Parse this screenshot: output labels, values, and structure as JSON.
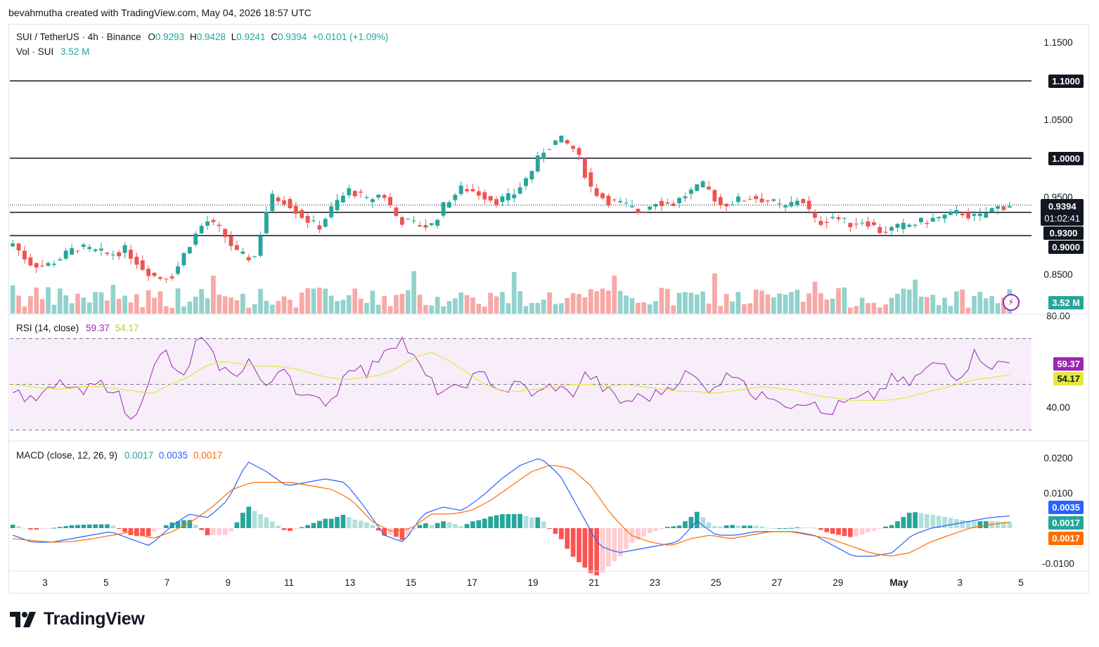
{
  "attribution": "bevahmutha created with TradingView.com, May 04, 2026 18:57 UTC",
  "brand": "TradingView",
  "header": {
    "symbol": "SUI / TetherUS · 4h · Binance",
    "o_label": "O",
    "o": "0.9293",
    "h_label": "H",
    "h": "0.9428",
    "l_label": "L",
    "l": "0.9241",
    "c_label": "C",
    "c": "0.9394",
    "change": "+0.0101 (+1.09%)",
    "vol_label": "Vol · SUI",
    "vol": "3.52 M"
  },
  "rsi_legend": {
    "label": "RSI (14, close)",
    "v1": "59.37",
    "v2": "54.17"
  },
  "macd_legend": {
    "label": "MACD (close, 12, 26, 9)",
    "v1": "0.0017",
    "v2": "0.0035",
    "v3": "0.0017"
  },
  "price_labels": {
    "current": "0.9394",
    "countdown": "01:02:41",
    "l1100": "1.1000",
    "l1000": "1.0000",
    "l9300": "0.9300",
    "l9000": "0.9000",
    "vol": "3.52 M",
    "rsi1": "59.37",
    "rsi2": "54.17",
    "macd1": "0.0035",
    "macd2": "0.0017",
    "macd3": "0.0017"
  },
  "colors": {
    "up": "#26a69a",
    "down": "#ef5350",
    "rsi": "#9c27b0",
    "rsi_ma": "#e4e83c",
    "macd": "#2962ff",
    "signal": "#ff6d00",
    "text": "#131722"
  },
  "chart_data": {
    "type": "candlestick",
    "symbol": "SUI / TetherUS",
    "timeframe": "4h",
    "price_axis_ticks": [
      "1.1500",
      "1.0500",
      "0.9500",
      "0.8500"
    ],
    "horizontal_lines": [
      1.1,
      1.0,
      0.93,
      0.9
    ],
    "x_ticks": [
      "3",
      "5",
      "7",
      "9",
      "11",
      "13",
      "15",
      "17",
      "19",
      "21",
      "23",
      "25",
      "27",
      "29",
      "May",
      "3",
      "5"
    ],
    "price_anchors": [
      0.89,
      0.865,
      0.86,
      0.872,
      0.885,
      0.88,
      0.875,
      0.882,
      0.86,
      0.845,
      0.85,
      0.89,
      0.92,
      0.905,
      0.875,
      0.87,
      0.95,
      0.945,
      0.925,
      0.91,
      0.94,
      0.96,
      0.945,
      0.955,
      0.92,
      0.915,
      0.912,
      0.945,
      0.962,
      0.955,
      0.945,
      0.95,
      0.975,
      1.01,
      1.025,
      1.01,
      0.96,
      0.945,
      0.94,
      0.93,
      0.945,
      0.94,
      0.955,
      0.965,
      0.94,
      0.945,
      0.95,
      0.945,
      0.935,
      0.95,
      0.915,
      0.925,
      0.915,
      0.92,
      0.905,
      0.91,
      0.915,
      0.92,
      0.925,
      0.93,
      0.922,
      0.935,
      0.94
    ],
    "rsi_axis_ticks": [
      "80.00",
      "40.00"
    ],
    "rsi_bands": [
      70,
      50,
      30
    ],
    "rsi_anchors": [
      49,
      42,
      46,
      51,
      45,
      50,
      49,
      33,
      52,
      65,
      50,
      71,
      60,
      53,
      61,
      47,
      60,
      45,
      42,
      44,
      60,
      54,
      66,
      70,
      58,
      48,
      46,
      52,
      54,
      47,
      50,
      45,
      50,
      45,
      55,
      48,
      42,
      44,
      45,
      50,
      55,
      48,
      52,
      56,
      43,
      46,
      41,
      44,
      36,
      41,
      43,
      45,
      52,
      50,
      56,
      60,
      53,
      64,
      58,
      59.37
    ],
    "rsi_ma_anchors": [
      50,
      49,
      48,
      48,
      49,
      49,
      48,
      47,
      46,
      50,
      53,
      58,
      60,
      59,
      58,
      58,
      57,
      55,
      53,
      52,
      53,
      54,
      57,
      62,
      64,
      60,
      55,
      50,
      47,
      47,
      48,
      49,
      50,
      50,
      49,
      50,
      49,
      48,
      47,
      47,
      46,
      47,
      48,
      49,
      48,
      47,
      45,
      44,
      43,
      43,
      43,
      44,
      46,
      48,
      50,
      52,
      53,
      54.17
    ],
    "macd_axis_ticks": [
      "0.0200",
      "0.0100",
      "-0.0100"
    ],
    "macd_anchors": [
      -0.002,
      -0.004,
      -0.004,
      -0.003,
      -0.002,
      -0.001,
      -0.003,
      -0.005,
      0.0,
      0.004,
      0.003,
      0.008,
      0.019,
      0.016,
      0.012,
      0.013,
      0.014,
      0.013,
      0.006,
      -0.002,
      -0.004,
      0.004,
      0.006,
      0.005,
      0.009,
      0.014,
      0.018,
      0.02,
      0.015,
      0.005,
      -0.005,
      -0.007,
      -0.006,
      -0.005,
      -0.004,
      0.002,
      -0.002,
      -0.002,
      -0.001,
      -0.001,
      -0.001,
      -0.002,
      -0.005,
      -0.008,
      -0.008,
      -0.007,
      -0.002,
      0.0,
      0.001,
      0.002,
      0.003,
      0.0035
    ],
    "signal_anchors": [
      -0.003,
      -0.0035,
      -0.004,
      -0.0038,
      -0.003,
      -0.002,
      -0.001,
      -0.003,
      -0.001,
      0.002,
      0.006,
      0.011,
      0.013,
      0.013,
      0.013,
      0.012,
      0.011,
      0.008,
      0.002,
      -0.001,
      0.0,
      0.004,
      0.004,
      0.005,
      0.008,
      0.012,
      0.016,
      0.018,
      0.017,
      0.012,
      0.004,
      -0.002,
      -0.004,
      -0.005,
      -0.003,
      -0.002,
      -0.003,
      -0.002,
      -0.001,
      -0.001,
      -0.002,
      -0.003,
      -0.005,
      -0.007,
      -0.008,
      -0.007,
      -0.004,
      -0.002,
      0.0,
      0.001,
      0.0017
    ]
  }
}
